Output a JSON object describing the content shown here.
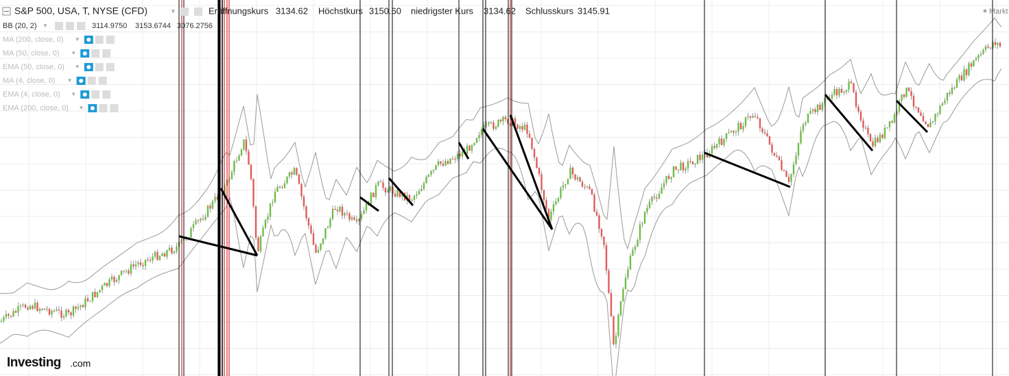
{
  "header": {
    "symbol": "S&P 500, USA, T, NYSE (CFD)",
    "quotes": [
      {
        "label": "Eröffnungskurs",
        "value": "3134.62"
      },
      {
        "label": "Höchstkurs",
        "value": "3150.60"
      },
      {
        "label": "niedrigster Kurs",
        "value": "3134.62"
      },
      {
        "label": "Schlusskurs",
        "value": "3145.91"
      }
    ],
    "market": "Markt"
  },
  "indicators": [
    {
      "label": "BB (20, 2)",
      "values": [
        "3114.9750",
        "3153.6744",
        "3076.2756"
      ]
    },
    {
      "label": "MA (200, close, 0)"
    },
    {
      "label": "MA (50, close, 0)"
    },
    {
      "label": "EMA (50, close, 0)"
    },
    {
      "label": "MA (4, close, 0)"
    },
    {
      "label": "EMA (4, close, 0)"
    },
    {
      "label": "EMA (200, close, 0)"
    }
  ],
  "logo": {
    "brand": "Investing",
    "suffix": ".com"
  }
}
